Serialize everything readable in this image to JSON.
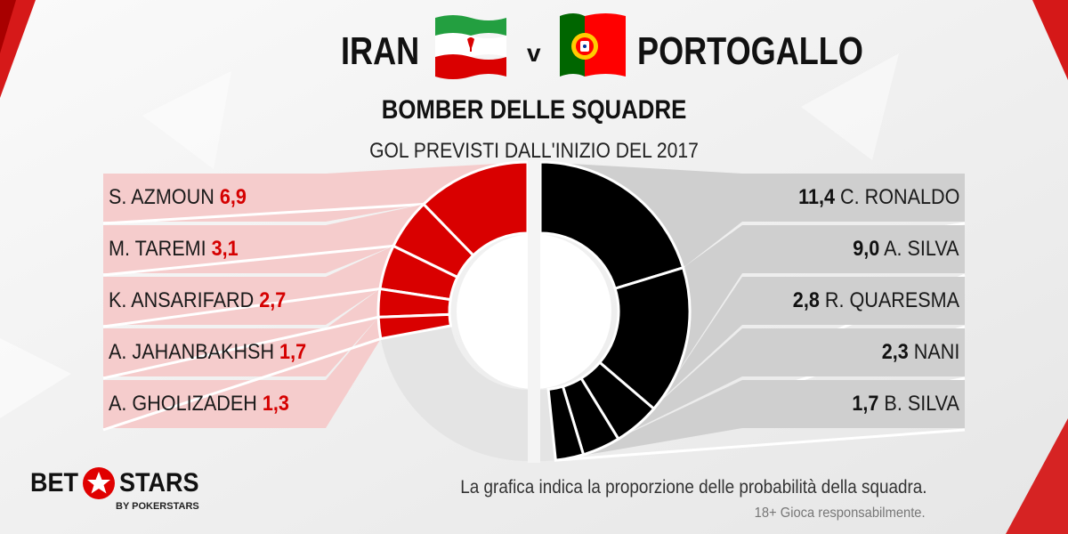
{
  "header": {
    "team_left": "IRAN",
    "vs": "v",
    "team_right": "PORTOGALLO",
    "title": "BOMBER DELLE SQUADRE",
    "subtitle": "GOL PREVISTI DALL'INIZIO  DEL 2017"
  },
  "chart_data": {
    "type": "pie",
    "title": "BOMBER DELLE SQUADRE",
    "subtitle": "GOL PREVISTI DALL'INIZIO  DEL 2017",
    "series": [
      {
        "name": "IRAN",
        "labels": [
          "S. AZMOUN",
          "M. TAREMI",
          "K. ANSARIFARD",
          "A. JAHANBAKHSH",
          "A. GHOLIZADEH"
        ],
        "values": [
          6.9,
          3.1,
          2.7,
          1.7,
          1.3
        ],
        "display_values": [
          "6,9",
          "3,1",
          "2,7",
          "1,7",
          "1,3"
        ],
        "color": "#d90000"
      },
      {
        "name": "PORTOGALLO",
        "labels": [
          "C. RONALDO",
          "A. SILVA",
          "R. QUARESMA",
          "NANI",
          "B. SILVA"
        ],
        "values": [
          11.4,
          9.0,
          2.8,
          2.3,
          1.7
        ],
        "display_values": [
          "11,4",
          "9,0",
          "2,8",
          "2,3",
          "1,7"
        ],
        "color": "#000000"
      }
    ]
  },
  "footer": {
    "note": "La grafica indica la proporzione delle probabilità della squadra.",
    "note2": "18+ Gioca responsabilmente."
  },
  "logo": {
    "bet": "BET",
    "stars": "STARS",
    "sub": "BY POKERSTARS"
  },
  "colors": {
    "red": "#d90000",
    "light_red": "#f5cccc",
    "black": "#000000",
    "grey_panel": "#cfcfcf",
    "remainder": "#e4e4e4"
  },
  "icons": [
    "iran-flag-icon",
    "portugal-flag-icon",
    "pokerstars-star-icon"
  ]
}
